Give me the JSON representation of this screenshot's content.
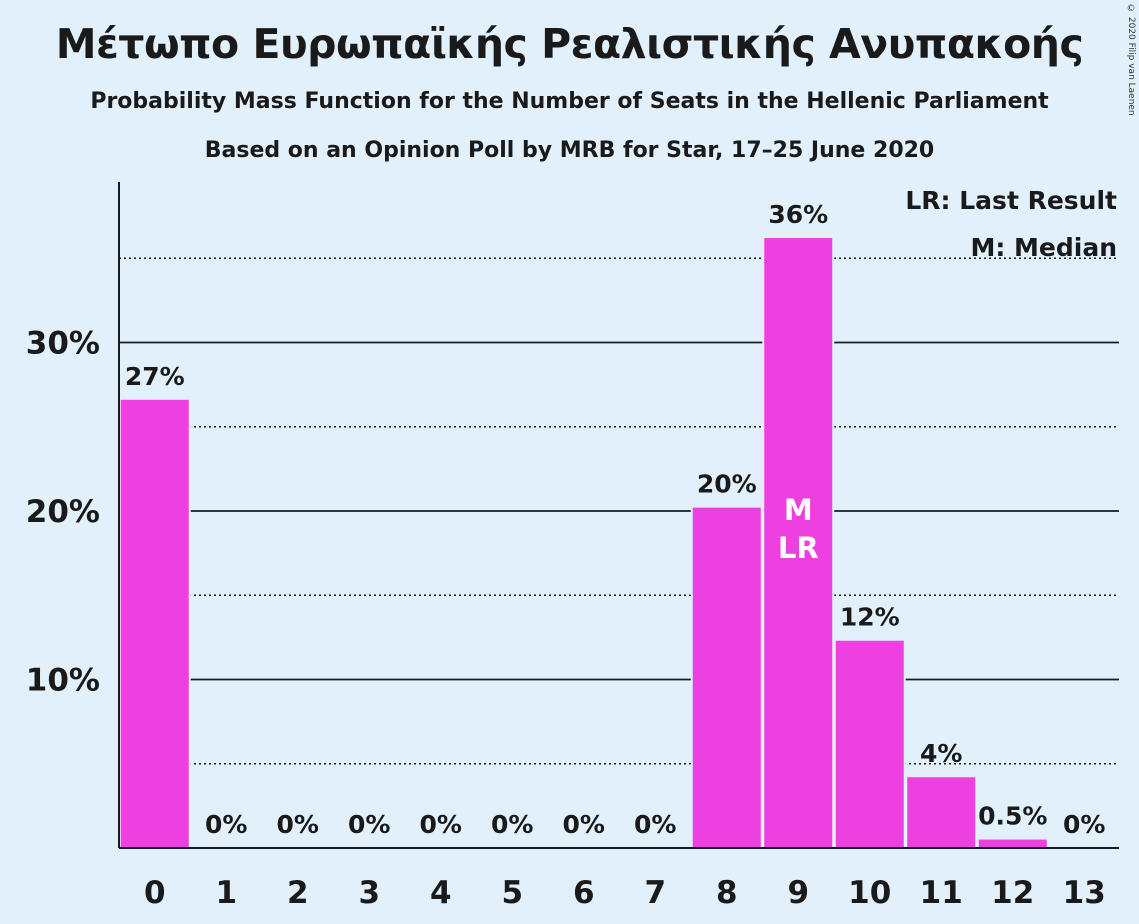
{
  "title": "Μέτωπο Ευρωπαϊκής Ρεαλιστικής Ανυπακοής",
  "subtitle": "Probability Mass Function for the Number of Seats in the Hellenic Parliament",
  "subtitle2": "Based on an Opinion Poll by MRB for Star, 17–25 June 2020",
  "copyright": "© 2020 Filip van Laenen",
  "legend": {
    "last_result": "LR: Last Result",
    "median": "M: Median"
  },
  "colors": {
    "background": "#e2f0fc",
    "bar": "#ee3fe0",
    "axis": "#1a1a1a"
  },
  "chart_data": {
    "type": "bar",
    "categories": [
      "0",
      "1",
      "2",
      "3",
      "4",
      "5",
      "6",
      "7",
      "8",
      "9",
      "10",
      "11",
      "12",
      "13"
    ],
    "values": [
      26.6,
      0,
      0,
      0,
      0,
      0,
      0,
      0,
      20.2,
      36.2,
      12.3,
      4.2,
      0.5,
      0
    ],
    "data_labels": [
      "27%",
      "0%",
      "0%",
      "0%",
      "0%",
      "0%",
      "0%",
      "0%",
      "20%",
      "36%",
      "12%",
      "4%",
      "0.5%",
      "0%"
    ],
    "ylim": [
      0,
      39.5
    ],
    "yticks": [
      10,
      20,
      30
    ],
    "ytick_labels": [
      "10%",
      "20%",
      "30%"
    ],
    "minor_gridlines": [
      5,
      15,
      25,
      35
    ],
    "median_index": 9,
    "last_result_index": 9,
    "median_marker": "M",
    "last_result_marker": "LR",
    "legend_position": "top-right",
    "grid": true
  }
}
